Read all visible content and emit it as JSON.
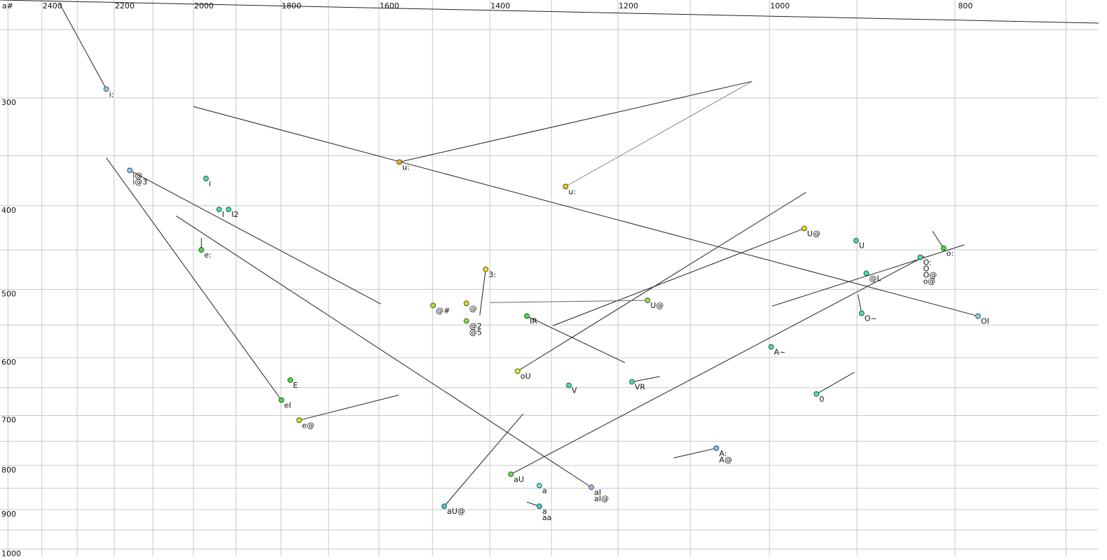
{
  "chart_data": {
    "type": "scatter",
    "corner_label": "a#",
    "xscale": "log",
    "yscale": "log",
    "xlim": [
      2524,
      673
    ],
    "ylim": [
      231,
      1020
    ],
    "xticks": [
      2400,
      2200,
      2000,
      1800,
      1600,
      1400,
      1200,
      1000,
      800
    ],
    "xminor": [
      2500,
      2300,
      2100,
      1900,
      1700,
      1500,
      1300,
      1100,
      900,
      700
    ],
    "yticks": [
      300,
      400,
      500,
      600,
      700,
      800,
      900,
      1000
    ],
    "yminor": [
      250,
      350,
      450,
      550,
      650,
      750,
      850,
      950
    ],
    "grid": true,
    "grid_color": "#c8c8c8",
    "points": [
      {
        "labels": [
          "i:"
        ],
        "x": 2221,
        "y": 293,
        "color": "#8ecbf0"
      },
      {
        "labels": [
          "i@",
          "i@3"
        ],
        "x": 2159,
        "y": 364,
        "color": "#8ecbf0"
      },
      {
        "labels": [
          "i"
        ],
        "x": 1970,
        "y": 372,
        "color": "#44e0a0"
      },
      {
        "labels": [
          "I"
        ],
        "x": 1939,
        "y": 404,
        "color": "#44e0a0"
      },
      {
        "labels": [
          "I2"
        ],
        "x": 1917,
        "y": 404,
        "color": "#44e0a0"
      },
      {
        "labels": [
          "e:"
        ],
        "x": 1981,
        "y": 450,
        "color": "#44dd44"
      },
      {
        "labels": [
          "E"
        ],
        "x": 1780,
        "y": 637,
        "color": "#44dd44"
      },
      {
        "labels": [
          "eI"
        ],
        "x": 1799,
        "y": 672,
        "color": "#44dd44"
      },
      {
        "labels": [
          "e@"
        ],
        "x": 1761,
        "y": 709,
        "color": "#bbee22"
      },
      {
        "labels": [
          "u:"
        ],
        "x": 1561,
        "y": 356,
        "color": "#e6b422"
      },
      {
        "labels": [
          "u:"
        ],
        "x": 1278,
        "y": 380,
        "color": "#f0c020",
        "label_color": "#8866aa"
      },
      {
        "labels": [
          "3:"
        ],
        "x": 1407,
        "y": 474,
        "color": "#eedd22"
      },
      {
        "labels": [
          "@#"
        ],
        "x": 1499,
        "y": 522,
        "color": "#aade22"
      },
      {
        "labels": [
          "@"
        ],
        "x": 1440,
        "y": 519,
        "color": "#dddd22"
      },
      {
        "labels": [
          "@2",
          "@5"
        ],
        "x": 1440,
        "y": 544,
        "color": "#88e044"
      },
      {
        "labels": [
          "IR"
        ],
        "x": 1339,
        "y": 537,
        "color": "#44dd44"
      },
      {
        "labels": [
          "U@"
        ],
        "x": 1158,
        "y": 515,
        "color": "#88e044",
        "label_color": "#887799"
      },
      {
        "labels": [
          "oU"
        ],
        "x": 1354,
        "y": 622,
        "color": "#ddee22"
      },
      {
        "labels": [
          "V"
        ],
        "x": 1273,
        "y": 646,
        "color": "#44e0a0"
      },
      {
        "labels": [
          "VR"
        ],
        "x": 1180,
        "y": 640,
        "color": "#44e0a0"
      },
      {
        "labels": [
          "aU@"
        ],
        "x": 1479,
        "y": 892,
        "color": "#44c8d8"
      },
      {
        "labels": [
          "aU"
        ],
        "x": 1365,
        "y": 819,
        "color": "#66dd44"
      },
      {
        "labels": [
          "a"
        ],
        "x": 1319,
        "y": 844,
        "color": "#66e0e0",
        "label_color": "#888888"
      },
      {
        "labels": [
          "a",
          "aa"
        ],
        "x": 1319,
        "y": 892,
        "color": "#44c8d8"
      },
      {
        "labels": [
          "aI",
          "aI@"
        ],
        "x": 1239,
        "y": 848,
        "color": "#88bbee"
      },
      {
        "labels": [
          "A:",
          "A@"
        ],
        "x": 1066,
        "y": 764,
        "color": "#88bbee"
      },
      {
        "labels": [
          "A~"
        ],
        "x": 998,
        "y": 583,
        "color": "#44e0a0"
      },
      {
        "labels": [
          "0"
        ],
        "x": 945,
        "y": 661,
        "color": "#44e0a0"
      },
      {
        "labels": [
          "U@"
        ],
        "x": 959,
        "y": 425,
        "color": "#dddd22"
      },
      {
        "labels": [
          "U"
        ],
        "x": 901,
        "y": 439,
        "color": "#44e0a0"
      },
      {
        "labels": [
          "@L"
        ],
        "x": 890,
        "y": 479,
        "color": "#44e0a0"
      },
      {
        "labels": [
          "O~"
        ],
        "x": 895,
        "y": 533,
        "color": "#44e0a0"
      },
      {
        "labels": [
          "O:",
          "O",
          "O@",
          "o@"
        ],
        "x": 834,
        "y": 459,
        "color": "#44e0a0"
      },
      {
        "labels": [
          "o:"
        ],
        "x": 811,
        "y": 448,
        "color": "#44dd44"
      },
      {
        "labels": [
          "OI"
        ],
        "x": 778,
        "y": 537,
        "color": "#88ccee"
      }
    ],
    "trails": [
      {
        "x": [
          2350,
          2221
        ],
        "y": [
          233,
          293
        ],
        "color": "#222222"
      },
      {
        "x": [
          2000,
          778
        ],
        "y": [
          307,
          537
        ],
        "color": "#222222"
      },
      {
        "x": [
          1561,
          1021
        ],
        "y": [
          356,
          287
        ],
        "color": "#222222"
      },
      {
        "x": [
          1278,
          1021
        ],
        "y": [
          380,
          287
        ],
        "color": "#888888"
      },
      {
        "x": [
          2159,
          1596
        ],
        "y": [
          364,
          520
        ],
        "color": "#222222"
      },
      {
        "x": [
          2221,
          1799
        ],
        "y": [
          352,
          672
        ],
        "color": "#222222"
      },
      {
        "x": [
          2042,
          1239
        ],
        "y": [
          411,
          848
        ],
        "color": "#222222"
      },
      {
        "x": [
          1761,
          1562
        ],
        "y": [
          709,
          663
        ],
        "color": "#222222"
      },
      {
        "x": [
          1981,
          1981
        ],
        "y": [
          436,
          450
        ],
        "color": "#222222"
      },
      {
        "x": [
          1479,
          1345
        ],
        "y": [
          892,
          697
        ],
        "color": "#222222"
      },
      {
        "x": [
          1365,
          830
        ],
        "y": [
          819,
          458
        ],
        "color": "#222222"
      },
      {
        "x": [
          997,
          791
        ],
        "y": [
          523,
          444
        ],
        "color": "#222222"
      },
      {
        "x": [
          1354,
          957
        ],
        "y": [
          622,
          386
        ],
        "color": "#222222"
      },
      {
        "x": [
          1298,
          959
        ],
        "y": [
          551,
          425
        ],
        "color": "#222222"
      },
      {
        "x": [
          1400,
          1158
        ],
        "y": [
          518,
          515
        ],
        "color": "#666666"
      },
      {
        "x": [
          1407,
          1417
        ],
        "y": [
          474,
          536
        ],
        "color": "#222222"
      },
      {
        "x": [
          1339,
          1190
        ],
        "y": [
          537,
          608
        ],
        "color": "#222222"
      },
      {
        "x": [
          1180,
          1141
        ],
        "y": [
          640,
          631
        ],
        "color": "#222222"
      },
      {
        "x": [
          1066,
          1122
        ],
        "y": [
          764,
          784
        ],
        "color": "#222222"
      },
      {
        "x": [
          945,
          903
        ],
        "y": [
          661,
          624
        ],
        "color": "#222222"
      },
      {
        "x": [
          895,
          899
        ],
        "y": [
          533,
          507
        ],
        "color": "#222222"
      },
      {
        "x": [
          811,
          822
        ],
        "y": [
          448,
          428
        ],
        "color": "#222222"
      },
      {
        "x": [
          1319,
          1339
        ],
        "y": [
          892,
          882
        ],
        "color": "#222222"
      }
    ]
  }
}
